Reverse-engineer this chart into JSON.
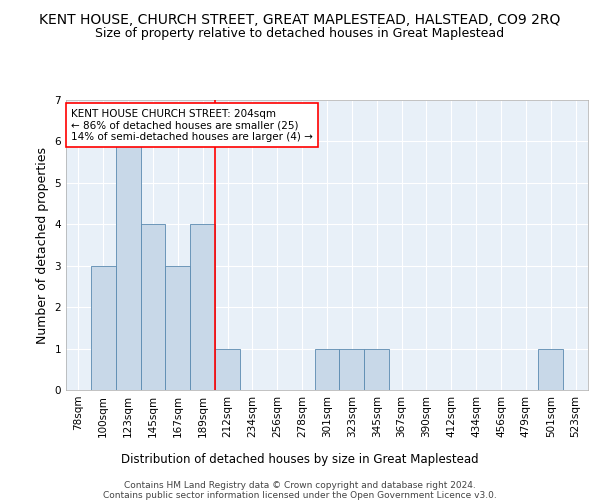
{
  "title": "KENT HOUSE, CHURCH STREET, GREAT MAPLESTEAD, HALSTEAD, CO9 2RQ",
  "subtitle": "Size of property relative to detached houses in Great Maplestead",
  "xlabel": "Distribution of detached houses by size in Great Maplestead",
  "ylabel": "Number of detached properties",
  "footnote1": "Contains HM Land Registry data © Crown copyright and database right 2024.",
  "footnote2": "Contains public sector information licensed under the Open Government Licence v3.0.",
  "categories": [
    "78sqm",
    "100sqm",
    "123sqm",
    "145sqm",
    "167sqm",
    "189sqm",
    "212sqm",
    "234sqm",
    "256sqm",
    "278sqm",
    "301sqm",
    "323sqm",
    "345sqm",
    "367sqm",
    "390sqm",
    "412sqm",
    "434sqm",
    "456sqm",
    "479sqm",
    "501sqm",
    "523sqm"
  ],
  "values": [
    0,
    3,
    6,
    4,
    3,
    4,
    1,
    0,
    0,
    0,
    1,
    1,
    1,
    0,
    0,
    0,
    0,
    0,
    0,
    1,
    0
  ],
  "bar_color": "#c8d8e8",
  "bar_edge_color": "#5a8ab0",
  "reference_line_index": 6,
  "reference_line_color": "red",
  "annotation_text": "KENT HOUSE CHURCH STREET: 204sqm\n← 86% of detached houses are smaller (25)\n14% of semi-detached houses are larger (4) →",
  "annotation_box_color": "white",
  "annotation_box_edge_color": "red",
  "ylim": [
    0,
    7
  ],
  "yticks": [
    0,
    1,
    2,
    3,
    4,
    5,
    6,
    7
  ],
  "background_color": "#e8f0f8",
  "grid_color": "white",
  "title_fontsize": 10,
  "subtitle_fontsize": 9,
  "ylabel_fontsize": 9,
  "xlabel_fontsize": 8.5,
  "tick_fontsize": 7.5,
  "annotation_fontsize": 7.5,
  "footnote_fontsize": 6.5
}
